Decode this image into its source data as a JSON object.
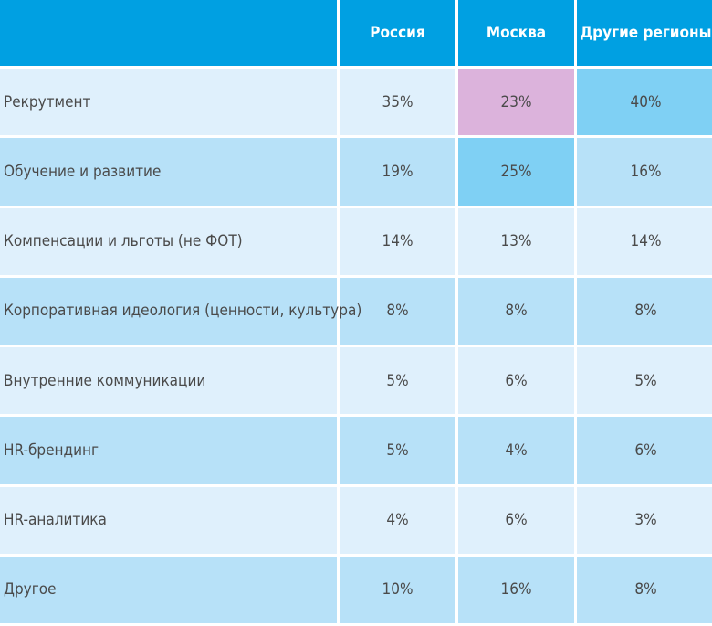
{
  "chart_data": {
    "type": "table",
    "columns": [
      "Россия",
      "Москва",
      "Другие регионы"
    ],
    "rows": [
      {
        "label": "Рекрутмент",
        "values": [
          "35%",
          "23%",
          "40%"
        ],
        "highlight": [
          null,
          "pink",
          "blue"
        ]
      },
      {
        "label": "Обучение и развитие",
        "values": [
          "19%",
          "25%",
          "16%"
        ],
        "highlight": [
          null,
          "blue",
          null
        ]
      },
      {
        "label": "Компенсации и льготы (не ФОТ)",
        "values": [
          "14%",
          "13%",
          "14%"
        ],
        "highlight": [
          null,
          null,
          null
        ]
      },
      {
        "label": "Корпоративная идеология (ценности, культура)",
        "values": [
          "8%",
          "8%",
          "8%"
        ],
        "highlight": [
          null,
          null,
          null
        ]
      },
      {
        "label": "Внутренние коммуникации",
        "values": [
          "5%",
          "6%",
          "5%"
        ],
        "highlight": [
          null,
          null,
          null
        ]
      },
      {
        "label": "HR-брендинг",
        "values": [
          "5%",
          "4%",
          "6%"
        ],
        "highlight": [
          null,
          null,
          null
        ]
      },
      {
        "label": "HR-аналитика",
        "values": [
          "4%",
          "6%",
          "3%"
        ],
        "highlight": [
          null,
          null,
          null
        ]
      },
      {
        "label": "Другое",
        "values": [
          "10%",
          "16%",
          "8%"
        ],
        "highlight": [
          null,
          null,
          null
        ]
      }
    ],
    "colors": {
      "header": "#00a0e2",
      "row_light": "#dff0fc",
      "row_dark": "#b7e1f8",
      "highlight_pink": "#dcb3dc",
      "highlight_blue": "#7fd0f4"
    }
  }
}
